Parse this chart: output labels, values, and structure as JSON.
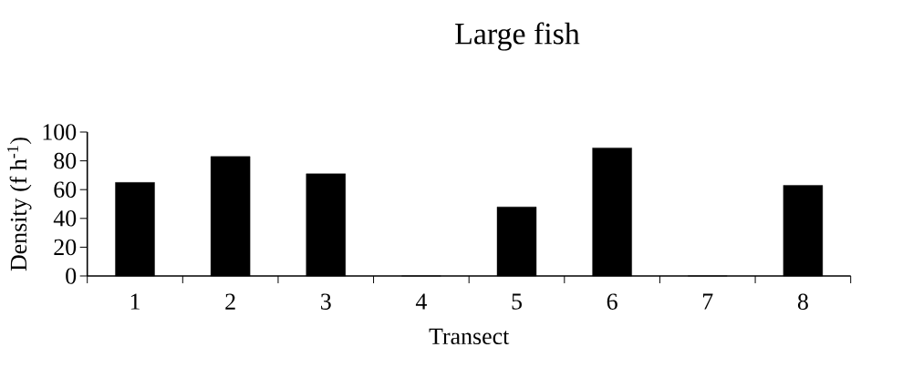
{
  "chart_data": {
    "type": "bar",
    "title": "Large fish",
    "xlabel": "Transect",
    "ylabel": "Density (f h$^{-1}$)",
    "categories": [
      "1",
      "2",
      "3",
      "4",
      "5",
      "6",
      "7",
      "8"
    ],
    "values": [
      65,
      83,
      71,
      0,
      48,
      89,
      0,
      63
    ],
    "color": "#000000",
    "ylim": [
      0,
      100
    ],
    "yticks": [
      0,
      20,
      40,
      60,
      80,
      100
    ]
  }
}
